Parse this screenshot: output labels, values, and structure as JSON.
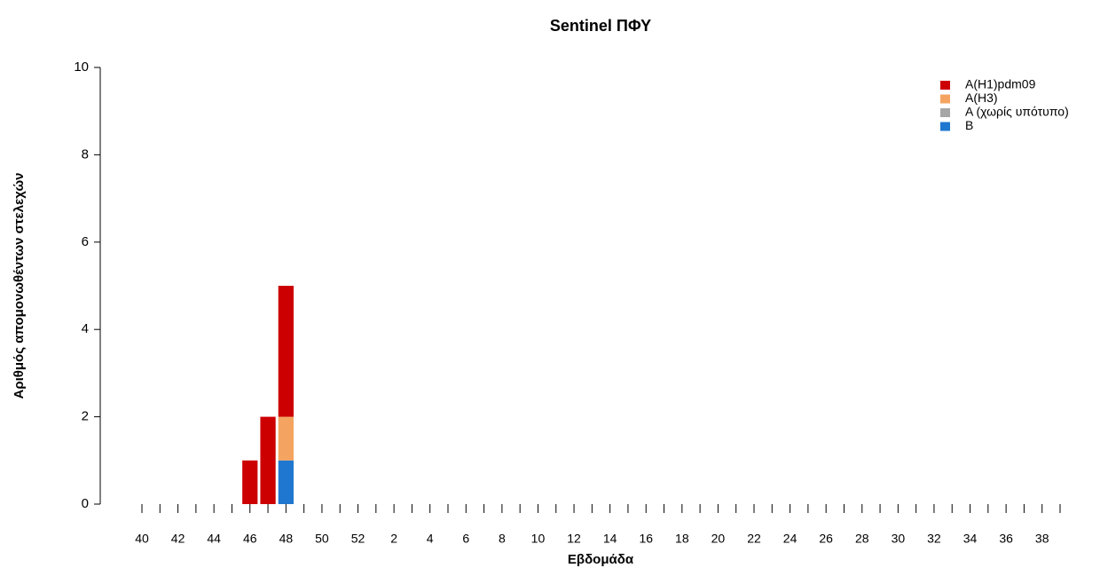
{
  "chart_data": {
    "type": "stacked-bar",
    "title": "Sentinel ΠΦΥ",
    "x_label": "Εβδομάδα",
    "y_label": "Αριθμός απομονωθέντων στελεχών",
    "categories": [
      "40",
      null,
      "42",
      null,
      "44",
      null,
      "46",
      null,
      "48",
      null,
      "50",
      null,
      "52",
      null,
      "2",
      null,
      "4",
      null,
      "6",
      null,
      "8",
      null,
      "10",
      null,
      "12",
      null,
      "14",
      null,
      "16",
      null,
      "18",
      null,
      "20",
      null,
      "22",
      null,
      "24",
      null,
      "26",
      null,
      "28",
      null,
      "30",
      null,
      "32",
      null,
      "34",
      null,
      "36",
      null,
      "38",
      null
    ],
    "series": [
      {
        "name": "A(H1)pdm09",
        "color": "#cc0000",
        "values": [
          0,
          0,
          0,
          0,
          0,
          0,
          1,
          2,
          3,
          0,
          0,
          0,
          0,
          0,
          0,
          0,
          0,
          0,
          0,
          0,
          0,
          0,
          0,
          0,
          0,
          0,
          0,
          0,
          0,
          0,
          0,
          0,
          0,
          0,
          0,
          0,
          0,
          0,
          0,
          0,
          0,
          0,
          0,
          0,
          0,
          0,
          0,
          0,
          0,
          0,
          0,
          0
        ]
      },
      {
        "name": "A(H3)",
        "color": "#f4a460",
        "values": [
          0,
          0,
          0,
          0,
          0,
          0,
          0,
          0,
          1,
          0,
          0,
          0,
          0,
          0,
          0,
          0,
          0,
          0,
          0,
          0,
          0,
          0,
          0,
          0,
          0,
          0,
          0,
          0,
          0,
          0,
          0,
          0,
          0,
          0,
          0,
          0,
          0,
          0,
          0,
          0,
          0,
          0,
          0,
          0,
          0,
          0,
          0,
          0,
          0,
          0,
          0,
          0
        ]
      },
      {
        "name": "A (χωρίς υπότυπο)",
        "color": "#a6a6a6",
        "values": [
          0,
          0,
          0,
          0,
          0,
          0,
          0,
          0,
          0,
          0,
          0,
          0,
          0,
          0,
          0,
          0,
          0,
          0,
          0,
          0,
          0,
          0,
          0,
          0,
          0,
          0,
          0,
          0,
          0,
          0,
          0,
          0,
          0,
          0,
          0,
          0,
          0,
          0,
          0,
          0,
          0,
          0,
          0,
          0,
          0,
          0,
          0,
          0,
          0,
          0,
          0,
          0
        ]
      },
      {
        "name": "B",
        "color": "#1f77d0",
        "values": [
          0,
          0,
          0,
          0,
          0,
          0,
          0,
          0,
          1,
          0,
          0,
          0,
          0,
          0,
          0,
          0,
          0,
          0,
          0,
          0,
          0,
          0,
          0,
          0,
          0,
          0,
          0,
          0,
          0,
          0,
          0,
          0,
          0,
          0,
          0,
          0,
          0,
          0,
          0,
          0,
          0,
          0,
          0,
          0,
          0,
          0,
          0,
          0,
          0,
          0,
          0,
          0
        ]
      }
    ],
    "stack_order": [
      "B",
      "A (χωρίς υπότυπο)",
      "A(H3)",
      "A(H1)pdm09"
    ],
    "ylim": [
      0,
      10
    ],
    "yticks": [
      0,
      2,
      4,
      6,
      8,
      10
    ],
    "legend": "top-right"
  }
}
